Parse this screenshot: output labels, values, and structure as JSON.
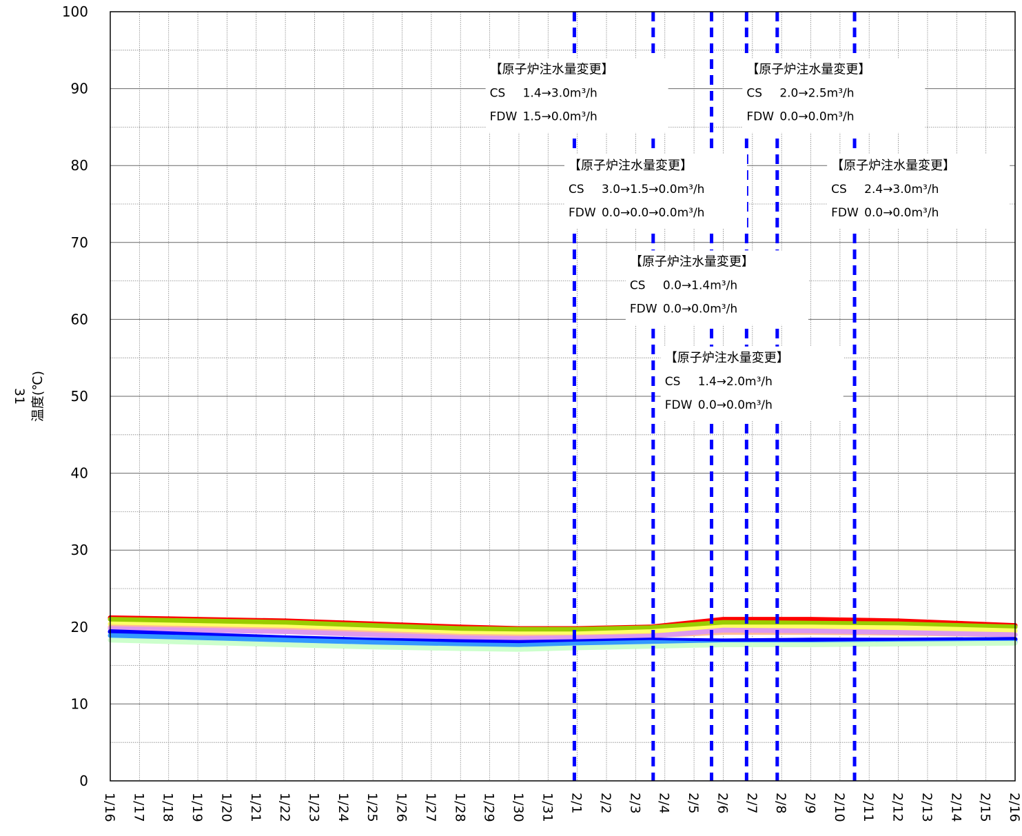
{
  "chart_data": {
    "type": "line",
    "ylabel": "温度(℃)",
    "y_side_label": "31",
    "ylim": [
      0,
      100
    ],
    "yticks": [
      "0",
      "10",
      "20",
      "30",
      "40",
      "50",
      "60",
      "70",
      "80",
      "90",
      "100"
    ],
    "x_categories": [
      "1/16",
      "1/17",
      "1/18",
      "1/19",
      "1/20",
      "1/21",
      "1/22",
      "1/23",
      "1/24",
      "1/25",
      "1/26",
      "1/27",
      "1/28",
      "1/29",
      "1/30",
      "1/31",
      "2/1",
      "2/2",
      "2/3",
      "2/4",
      "2/5",
      "2/6",
      "2/7",
      "2/8",
      "2/9",
      "2/10",
      "2/11",
      "2/12",
      "2/13",
      "2/14",
      "2/15",
      "2/16"
    ],
    "grid": true,
    "series": [
      {
        "color": "#ff0000",
        "values": [
          21.2,
          21.0,
          20.8,
          20.4,
          20.0,
          19.8,
          19.8,
          20.0,
          21.0,
          21.0,
          20.8,
          20.2
        ]
      },
      {
        "color": "#99cc00",
        "values": [
          21.0,
          20.8,
          20.6,
          20.2,
          19.8,
          19.7,
          19.7,
          19.9,
          20.6,
          20.5,
          20.4,
          20.0
        ]
      },
      {
        "color": "#ffff66",
        "values": [
          20.4,
          20.2,
          20.0,
          19.6,
          19.2,
          19.1,
          19.1,
          19.4,
          20.0,
          20.0,
          19.9,
          19.5
        ]
      },
      {
        "color": "#ffbb99",
        "values": [
          20.0,
          19.8,
          19.6,
          19.2,
          18.8,
          18.7,
          18.7,
          18.9,
          19.3,
          19.3,
          19.2,
          19.0
        ]
      },
      {
        "color": "#dd99ee",
        "values": [
          19.8,
          19.6,
          19.4,
          19.0,
          18.6,
          18.5,
          18.6,
          18.8,
          19.6,
          19.5,
          19.3,
          19.0
        ]
      },
      {
        "color": "#0000ff",
        "values": [
          19.4,
          19.0,
          18.6,
          18.3,
          18.1,
          18.0,
          18.1,
          18.3,
          18.2,
          18.3,
          18.3,
          18.4
        ]
      },
      {
        "color": "#3399ff",
        "values": [
          18.9,
          18.6,
          18.3,
          18.0,
          17.7,
          17.6,
          17.8,
          18.0,
          17.8,
          17.8,
          17.9,
          18.0
        ]
      },
      {
        "color": "#ccffcc",
        "values": [
          18.3,
          18.0,
          17.7,
          17.4,
          17.2,
          17.1,
          17.3,
          17.5,
          17.7,
          17.7,
          17.8,
          17.9
        ]
      }
    ],
    "series_x": [
      0,
      3,
      6,
      9,
      12,
      14,
      16,
      18.5,
      21,
      24,
      27,
      31
    ],
    "event_lines": {
      "color": "#0000ff",
      "x": [
        15.9,
        18.6,
        20.6,
        21.8,
        22.85,
        25.5
      ]
    },
    "annotations": [
      {
        "id": "a1",
        "x": 13.0,
        "y": 92,
        "head": "【原子炉注水量変更】",
        "cs_label": "CS",
        "cs": "1.4→3.0m³/h",
        "fdw_label": "FDW",
        "fdw": "1.5→0.0m³/h"
      },
      {
        "id": "a2",
        "x": 21.8,
        "y": 92,
        "head": "【原子炉注水量変更】",
        "cs_label": "CS",
        "cs": "2.0→2.5m³/h",
        "fdw_label": "FDW",
        "fdw": "0.0→0.0m³/h"
      },
      {
        "id": "a3",
        "x": 15.7,
        "y": 79.5,
        "head": "【原子炉注水量変更】",
        "cs_label": "CS",
        "cs": "3.0→1.5→0.0m³/h",
        "fdw_label": "FDW",
        "fdw": "0.0→0.0→0.0m³/h"
      },
      {
        "id": "a4",
        "x": 24.7,
        "y": 79.5,
        "head": "【原子炉注水量変更】",
        "cs_label": "CS",
        "cs": "2.4→3.0m³/h",
        "fdw_label": "FDW",
        "fdw": "0.0→0.0m³/h"
      },
      {
        "id": "a5",
        "x": 17.8,
        "y": 67,
        "head": "【原子炉注水量変更】",
        "cs_label": "CS",
        "cs": "0.0→1.4m³/h",
        "fdw_label": "FDW",
        "fdw": "0.0→0.0m³/h"
      },
      {
        "id": "a6",
        "x": 19.0,
        "y": 54.5,
        "head": "【原子炉注水量変更】",
        "cs_label": "CS",
        "cs": "1.4→2.0m³/h",
        "fdw_label": "FDW",
        "fdw": "0.0→0.0m³/h"
      }
    ]
  }
}
